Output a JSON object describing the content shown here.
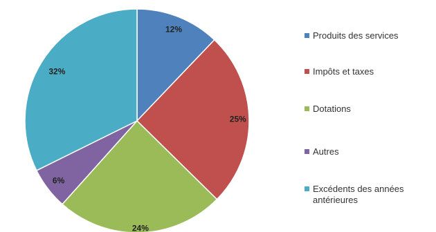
{
  "chart_data": {
    "type": "pie",
    "title": "",
    "categories": [
      "Produits des services",
      "Impôts et taxes",
      "Dotations",
      "Autres",
      "Excédents des années antérieures"
    ],
    "values": [
      12,
      25,
      24,
      6,
      32
    ],
    "labels": [
      "12%",
      "25%",
      "24%",
      "6%",
      "32%"
    ],
    "colors": [
      "#4F81BD",
      "#C0504D",
      "#9BBB59",
      "#8064A2",
      "#4BACC6"
    ],
    "start_angle": "12 o'clock",
    "direction": "clockwise",
    "legend_position": "right"
  }
}
